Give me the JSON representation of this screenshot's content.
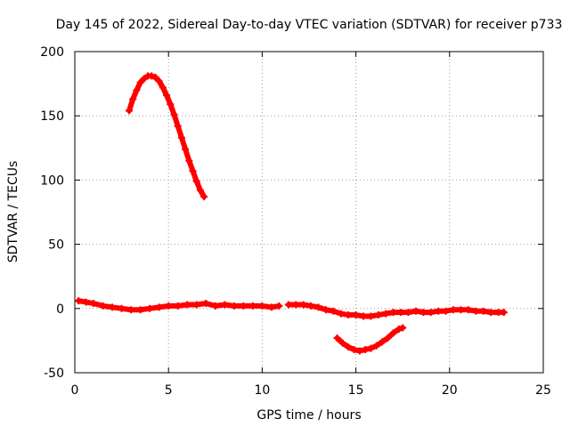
{
  "chart_data": {
    "type": "scatter",
    "title": "Day 145 of 2022, Sidereal Day-to-day VTEC variation (SDTVAR) for receiver p733",
    "xlabel": "GPS time / hours",
    "ylabel": "SDTVAR / TECUs",
    "xlim": [
      0,
      25
    ],
    "ylim": [
      -50,
      200
    ],
    "xticks": [
      0,
      5,
      10,
      15,
      20,
      25
    ],
    "yticks": [
      -50,
      0,
      50,
      100,
      150,
      200
    ],
    "xtick_labels": [
      "0",
      "5",
      "10",
      "15",
      "20",
      "25"
    ],
    "ytick_labels": [
      "-50",
      "0",
      "50",
      "100",
      "150",
      "200"
    ],
    "grid": true,
    "marker": "plus",
    "color": "#ff0000",
    "series": [
      {
        "name": "arc-1",
        "x": [
          2.9,
          3.1,
          3.3,
          3.5,
          3.7,
          3.9,
          4.1,
          4.3,
          4.5,
          4.7,
          4.9,
          5.1,
          5.3,
          5.5,
          5.7,
          5.9,
          6.1,
          6.3,
          6.5,
          6.7,
          6.9
        ],
        "y": [
          154,
          163,
          170,
          176,
          179,
          181,
          181,
          180,
          177,
          172,
          166,
          159,
          151,
          142,
          133,
          124,
          115,
          107,
          99,
          92,
          87
        ]
      },
      {
        "name": "arc-2",
        "x": [
          0.2,
          0.6,
          1.0,
          1.5,
          2.0,
          2.5,
          3.0,
          3.5,
          4.0,
          4.5,
          5.0,
          5.5,
          6.0,
          6.5,
          7.0,
          7.5,
          8.0,
          8.5,
          9.0,
          9.5,
          10.0,
          10.5,
          10.9
        ],
        "y": [
          6,
          5,
          4,
          2,
          1,
          0,
          -1,
          -1,
          0,
          1,
          2,
          2,
          3,
          3,
          4,
          2,
          3,
          2,
          2,
          2,
          2,
          1,
          2
        ]
      },
      {
        "name": "arc-3",
        "x": [
          11.4,
          11.8,
          12.2,
          12.6,
          13.0,
          13.4,
          13.8,
          14.2,
          14.6,
          15.0,
          15.4,
          15.8,
          16.2,
          16.6,
          17.0,
          17.4,
          17.8,
          18.2,
          18.6,
          19.0,
          19.4,
          19.8,
          20.2,
          20.6,
          21.0,
          21.4,
          21.8,
          22.2,
          22.6,
          22.9
        ],
        "y": [
          3,
          3,
          3,
          2,
          1,
          -1,
          -2,
          -4,
          -5,
          -5,
          -6,
          -6,
          -5,
          -4,
          -3,
          -3,
          -3,
          -2,
          -3,
          -3,
          -2,
          -2,
          -1,
          -1,
          -1,
          -2,
          -2,
          -3,
          -3,
          -3
        ]
      },
      {
        "name": "arc-4",
        "x": [
          14.0,
          14.3,
          14.6,
          14.9,
          15.2,
          15.5,
          15.8,
          16.1,
          16.4,
          16.7,
          17.0,
          17.3,
          17.5
        ],
        "y": [
          -23,
          -27,
          -30,
          -32,
          -33,
          -32,
          -31,
          -29,
          -26,
          -23,
          -19,
          -16,
          -15
        ]
      }
    ]
  }
}
